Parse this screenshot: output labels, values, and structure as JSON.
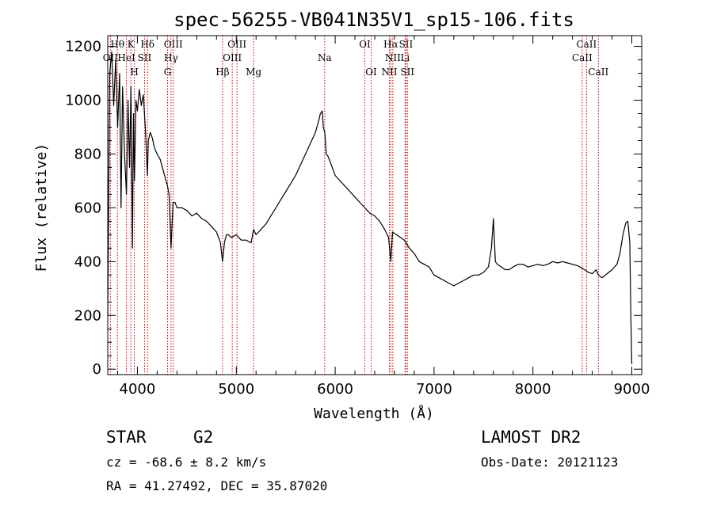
{
  "chart_data": {
    "type": "line",
    "title": "spec-56255-VB041N35V1_sp15-106.fits",
    "xlabel": "Wavelength (Å)",
    "ylabel": "Flux (relative)",
    "xlim": [
      3700,
      9100
    ],
    "ylim": [
      -20,
      1240
    ],
    "xticks": [
      4000,
      5000,
      6000,
      7000,
      8000,
      9000
    ],
    "yticks": [
      0,
      200,
      400,
      600,
      800,
      1000,
      1200
    ],
    "grid": false,
    "line_color": "#000000",
    "marker_color": "#cc0000",
    "series": [
      {
        "x": [
          3700,
          3720,
          3740,
          3760,
          3780,
          3800,
          3820,
          3835,
          3850,
          3870,
          3889,
          3905,
          3920,
          3935,
          3950,
          3960,
          3970,
          3985,
          4000,
          4020,
          4040,
          4060,
          4080,
          4101,
          4110,
          4130,
          4150,
          4175,
          4200,
          4230,
          4260,
          4290,
          4305,
          4320,
          4340,
          4360,
          4380,
          4400,
          4450,
          4500,
          4550,
          4600,
          4650,
          4700,
          4750,
          4800,
          4840,
          4861,
          4880,
          4900,
          4920,
          4950,
          5000,
          5050,
          5100,
          5150,
          5175,
          5200,
          5250,
          5300,
          5350,
          5400,
          5450,
          5500,
          5550,
          5600,
          5650,
          5700,
          5750,
          5800,
          5830,
          5850,
          5870,
          5880,
          5895,
          5910,
          5930,
          5960,
          6000,
          6050,
          6100,
          6150,
          6200,
          6250,
          6300,
          6350,
          6400,
          6450,
          6500,
          6540,
          6563,
          6580,
          6620,
          6660,
          6700,
          6750,
          6800,
          6850,
          6900,
          6950,
          7000,
          7050,
          7100,
          7150,
          7200,
          7250,
          7300,
          7350,
          7400,
          7450,
          7500,
          7550,
          7580,
          7600,
          7620,
          7640,
          7680,
          7720,
          7760,
          7800,
          7850,
          7900,
          7950,
          8000,
          8050,
          8100,
          8150,
          8200,
          8250,
          8300,
          8350,
          8400,
          8450,
          8500,
          8542,
          8560,
          8600,
          8640,
          8662,
          8700,
          8750,
          8800,
          8850,
          8880,
          8910,
          8940,
          8960,
          8980,
          8990,
          9000
        ],
        "y": [
          200,
          1100,
          1180,
          980,
          1150,
          900,
          1100,
          600,
          1050,
          800,
          650,
          1000,
          750,
          1050,
          450,
          950,
          700,
          1000,
          960,
          1040,
          980,
          1020,
          900,
          720,
          850,
          880,
          860,
          820,
          800,
          780,
          740,
          700,
          680,
          650,
          450,
          620,
          620,
          600,
          600,
          590,
          570,
          580,
          560,
          550,
          530,
          510,
          470,
          400,
          470,
          500,
          500,
          490,
          500,
          480,
          480,
          470,
          520,
          500,
          520,
          540,
          570,
          600,
          630,
          660,
          690,
          720,
          760,
          800,
          840,
          880,
          920,
          950,
          960,
          900,
          880,
          800,
          790,
          760,
          720,
          700,
          680,
          660,
          640,
          620,
          600,
          580,
          570,
          550,
          520,
          490,
          400,
          510,
          500,
          490,
          480,
          450,
          430,
          400,
          390,
          380,
          350,
          340,
          330,
          320,
          310,
          320,
          330,
          340,
          350,
          350,
          360,
          380,
          450,
          560,
          400,
          390,
          380,
          370,
          370,
          380,
          390,
          390,
          380,
          385,
          390,
          385,
          390,
          400,
          395,
          400,
          395,
          390,
          385,
          375,
          365,
          360,
          355,
          370,
          350,
          340,
          355,
          370,
          390,
          430,
          500,
          545,
          550,
          470,
          200,
          20
        ]
      }
    ],
    "lines": [
      {
        "label": "OII",
        "x": 3727,
        "row": 2
      },
      {
        "label": "Hθ",
        "x": 3798,
        "row": 1
      },
      {
        "label": "HeI",
        "x": 3889,
        "row": 2
      },
      {
        "label": "K",
        "x": 3934,
        "row": 1
      },
      {
        "label": "H",
        "x": 3969,
        "row": 3
      },
      {
        "label": "SII",
        "x": 4072,
        "row": 2
      },
      {
        "label": "Hδ",
        "x": 4102,
        "row": 1
      },
      {
        "label": "G",
        "x": 4305,
        "row": 3
      },
      {
        "label": "Hγ",
        "x": 4340,
        "row": 2
      },
      {
        "label": "OIII",
        "x": 4363,
        "row": 1
      },
      {
        "label": "Hβ",
        "x": 4861,
        "row": 3
      },
      {
        "label": "OIII",
        "x": 4959,
        "row": 2
      },
      {
        "label": "OIII",
        "x": 5007,
        "row": 1
      },
      {
        "label": "Mg",
        "x": 5175,
        "row": 3
      },
      {
        "label": "Na",
        "x": 5894,
        "row": 2
      },
      {
        "label": "OI",
        "x": 6300,
        "row": 1
      },
      {
        "label": "OI",
        "x": 6364,
        "row": 3
      },
      {
        "label": "NII",
        "x": 6548,
        "row": 3
      },
      {
        "label": "Hα",
        "x": 6563,
        "row": 1
      },
      {
        "label": "NII",
        "x": 6583,
        "row": 2
      },
      {
        "label": "Li",
        "x": 6707,
        "row": 2
      },
      {
        "label": "SII",
        "x": 6716,
        "row": 1
      },
      {
        "label": "SII",
        "x": 6731,
        "row": 3
      },
      {
        "label": "CaII",
        "x": 8498,
        "row": 2
      },
      {
        "label": "CaII",
        "x": 8542,
        "row": 1
      },
      {
        "label": "CaII",
        "x": 8662,
        "row": 3
      }
    ]
  },
  "info": {
    "class": "STAR",
    "subclass": "G2",
    "survey": "LAMOST DR2",
    "cz": "cz = -68.6 ± 8.2 km/s",
    "obs_date": "Obs-Date: 20121123",
    "radec": "RA =  41.27492, DEC =  35.87020"
  }
}
